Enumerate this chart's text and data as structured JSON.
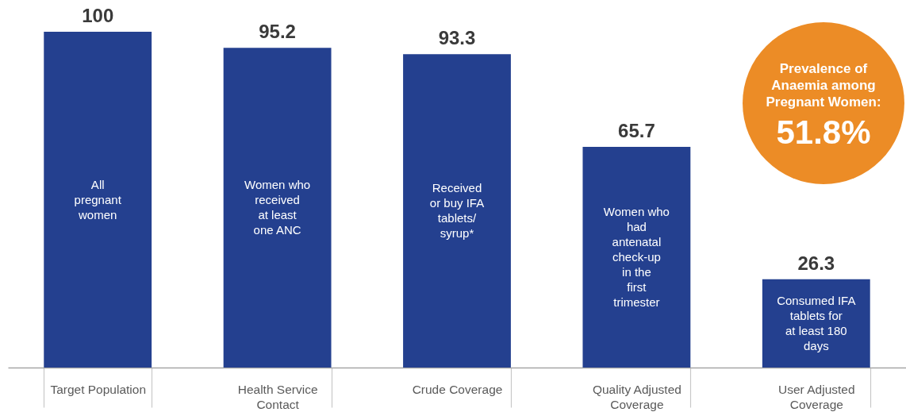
{
  "chart_data": {
    "type": "bar",
    "categories": [
      "Target Population",
      "Health Service Contact",
      "Crude Coverage",
      "Quality Adjusted Coverage",
      "User Adjusted Coverage"
    ],
    "values": [
      100,
      95.2,
      93.3,
      65.7,
      26.3
    ],
    "color": "#24408f",
    "data_labels": true,
    "annotations": [
      "All pregnant women",
      "Women who received at least one ANC",
      "Received or buy IFA tablets/ syrup*",
      "Women who had antenatal check-up in the first trimester",
      "Consumed IFA tablets for at least 180 days",
      "Prevalence of Anaemia among Pregnant Women:",
      "51.8%"
    ]
  }
}
